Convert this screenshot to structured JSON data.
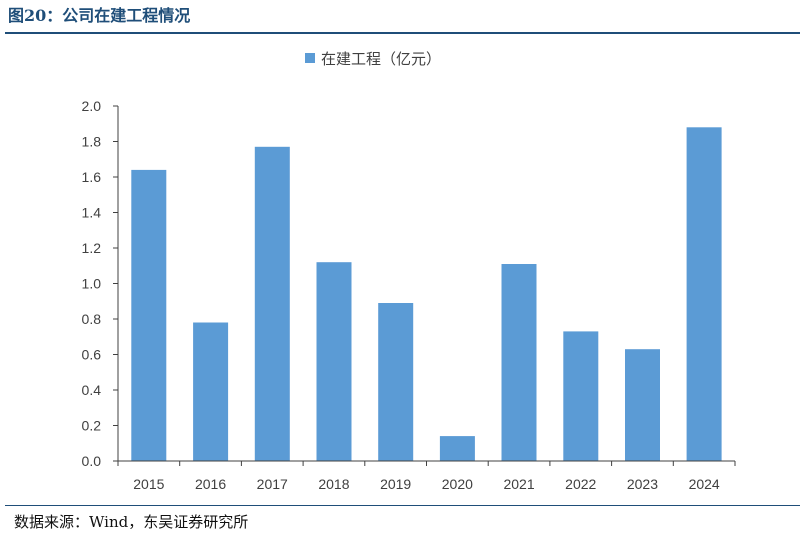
{
  "figure": {
    "title": "图20：公司在建工程情况",
    "source": "数据来源：Wind，东吴证券研究所"
  },
  "chart_data": {
    "type": "bar",
    "categories": [
      "2015",
      "2016",
      "2017",
      "2018",
      "2019",
      "2020",
      "2021",
      "2022",
      "2023",
      "2024"
    ],
    "series": [
      {
        "name": "在建工程（亿元）",
        "values": [
          1.64,
          0.78,
          1.77,
          1.12,
          0.89,
          0.14,
          1.11,
          0.73,
          0.63,
          1.88
        ]
      }
    ],
    "ylim": [
      0,
      2.0
    ],
    "yticks": [
      "0.0",
      "0.2",
      "0.4",
      "0.6",
      "0.8",
      "1.0",
      "1.2",
      "1.4",
      "1.6",
      "1.8",
      "2.0"
    ],
    "xlabel": "",
    "ylabel": "",
    "grid": false,
    "legend_position": "top-center",
    "colors": {
      "bar": "#5b9bd5",
      "axis": "#404040",
      "title": "#1f4e79"
    }
  }
}
